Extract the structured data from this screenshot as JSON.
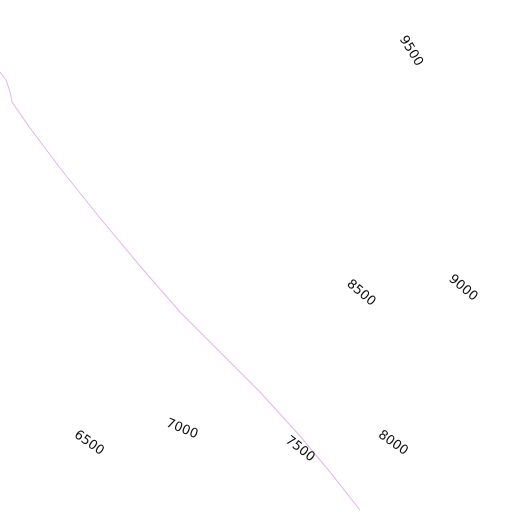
{
  "map": {
    "labels": [
      "9500",
      "8500",
      "9000",
      "6500",
      "7000",
      "7500",
      "8000"
    ]
  }
}
